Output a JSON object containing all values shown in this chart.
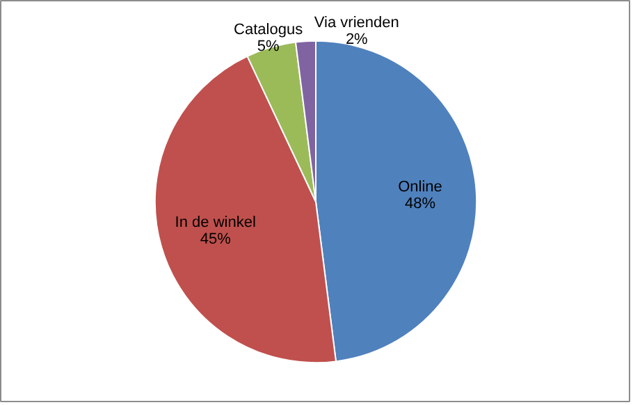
{
  "chart_data": {
    "type": "pie",
    "categories": [
      "Online",
      "In de winkel",
      "Catalogus",
      "Via vrienden"
    ],
    "values": [
      48,
      45,
      5,
      2
    ],
    "value_labels": [
      "48%",
      "45%",
      "5%",
      "2%"
    ],
    "colors": [
      "#4f81bd",
      "#c0504d",
      "#9bbb59",
      "#8064a2"
    ]
  }
}
